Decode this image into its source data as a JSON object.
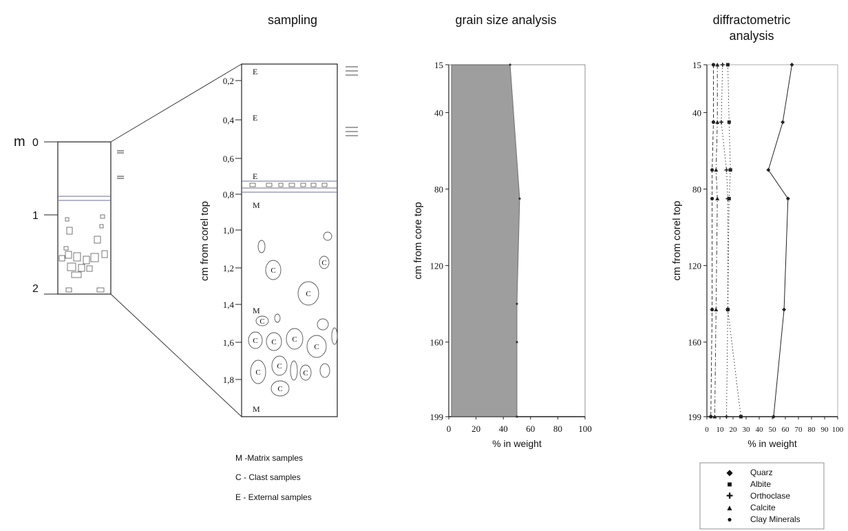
{
  "panel_titles": {
    "sampling": "sampling",
    "grain": "grain size analysis",
    "diffr_line1": "diffractometric",
    "diffr_line2": "analysis"
  },
  "column": {
    "unit_label": "m",
    "depth_ticks": [
      "0",
      "1",
      "2"
    ]
  },
  "sampling": {
    "y_ticks": [
      "0,2",
      "0,4",
      "0,6",
      "0,8",
      "1,0",
      "1,2",
      "1,4",
      "1,6",
      "1,8"
    ],
    "ylabel": "cm from corel top",
    "side_letters": [
      "E",
      "E",
      "E",
      "M",
      "M",
      "M"
    ],
    "clast_letter": "C"
  },
  "legend_samples": [
    "M -Matrix samples",
    "C - Clast samples",
    "E - External samples"
  ],
  "mineral_legend": [
    {
      "symbol": "◆",
      "name": "Quarz"
    },
    {
      "symbol": "■",
      "name": "Albite"
    },
    {
      "symbol": "✚",
      "name": "Orthoclase"
    },
    {
      "symbol": "▲",
      "name": "Calcite"
    },
    {
      "symbol": "●",
      "name": "Clay Minerals"
    }
  ],
  "chart_data": [
    {
      "type": "area",
      "title": "grain size analysis",
      "xlabel": "% in weight",
      "ylabel": "cm from core top",
      "y_ticks": [
        15,
        40,
        80,
        120,
        160,
        199
      ],
      "x_ticks": [
        0,
        20,
        40,
        60,
        80,
        100
      ],
      "xlim": [
        0,
        100
      ],
      "ylim": [
        15,
        199
      ],
      "y_inverted": true,
      "series": [
        {
          "x_left": [
            2,
            2,
            2,
            2,
            2
          ],
          "x_right": [
            45,
            52,
            50,
            50,
            50
          ],
          "y": [
            15,
            85,
            140,
            160,
            199
          ]
        }
      ],
      "colors": {
        "fill": "#8e8e8e"
      }
    },
    {
      "type": "line",
      "title": "diffractometric analysis",
      "xlabel": "% in weight",
      "ylabel": "cm from corel top",
      "y_ticks": [
        15,
        40,
        80,
        120,
        160,
        199
      ],
      "x_ticks": [
        0,
        10,
        20,
        30,
        40,
        50,
        60,
        70,
        80,
        90,
        100
      ],
      "xlim": [
        0,
        100
      ],
      "ylim": [
        15,
        199
      ],
      "y_inverted": true,
      "series": [
        {
          "name": "Quarz",
          "x": [
            65,
            58,
            47,
            62,
            59,
            51
          ],
          "y": [
            15,
            45,
            70,
            85,
            143,
            199
          ],
          "style": "solid"
        },
        {
          "name": "Albite",
          "x": [
            16,
            17,
            18,
            17,
            16,
            26
          ],
          "y": [
            15,
            45,
            70,
            85,
            143,
            199
          ],
          "style": "dotted"
        },
        {
          "name": "Orthoclase",
          "x": [
            12,
            11,
            15,
            16,
            16,
            15
          ],
          "y": [
            15,
            45,
            70,
            85,
            143,
            199
          ],
          "style": "dotted"
        },
        {
          "name": "Calcite",
          "x": [
            8,
            8,
            7,
            8,
            7,
            6
          ],
          "y": [
            15,
            45,
            70,
            85,
            143,
            199
          ],
          "style": "dashdot"
        },
        {
          "name": "Clay Minerals",
          "x": [
            5,
            5,
            4,
            4,
            4,
            3
          ],
          "y": [
            15,
            45,
            70,
            85,
            143,
            199
          ],
          "style": "dashed"
        }
      ]
    }
  ]
}
